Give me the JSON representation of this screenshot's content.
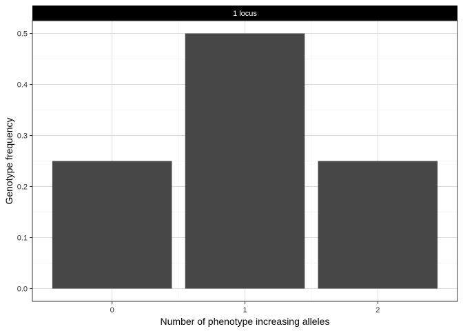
{
  "chart_data": {
    "type": "bar",
    "facet_label": "1 locus",
    "categories": [
      "0",
      "1",
      "2"
    ],
    "values": [
      0.25,
      0.5,
      0.25
    ],
    "xlabel": "Number of phenotype increasing alleles",
    "ylabel": "Genotype frequency",
    "ylim": [
      -0.025,
      0.525
    ],
    "yticks": [
      0.0,
      0.1,
      0.2,
      0.3,
      0.4,
      0.5
    ],
    "ytick_labels": [
      "0.0",
      "0.1",
      "0.2",
      "0.3",
      "0.4",
      "0.5"
    ],
    "grid": true,
    "legend": "none",
    "colors": {
      "bar": "#474747",
      "strip_background": "#000000",
      "strip_text": "#ffffff",
      "grid_major": "#dddddd",
      "grid_minor": "#eeeeee",
      "panel_border": "#333333"
    }
  }
}
